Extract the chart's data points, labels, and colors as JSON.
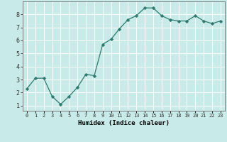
{
  "x": [
    0,
    1,
    2,
    3,
    4,
    5,
    6,
    7,
    8,
    9,
    10,
    11,
    12,
    13,
    14,
    15,
    16,
    17,
    18,
    19,
    20,
    21,
    22,
    23
  ],
  "y": [
    2.3,
    3.1,
    3.1,
    1.7,
    1.1,
    1.7,
    2.4,
    3.4,
    3.3,
    5.7,
    6.1,
    6.9,
    7.6,
    7.9,
    8.5,
    8.5,
    7.9,
    7.6,
    7.5,
    7.5,
    7.9,
    7.5,
    7.3,
    7.5
  ],
  "xlabel": "Humidex (Indice chaleur)",
  "ylim": [
    0.6,
    9.0
  ],
  "xlim": [
    -0.5,
    23.5
  ],
  "line_color": "#2d7a6e",
  "marker": "D",
  "marker_size": 2.2,
  "bg_color": "#c8eae8",
  "grid_color": "#ffffff",
  "yticks": [
    1,
    2,
    3,
    4,
    5,
    6,
    7,
    8
  ],
  "xtick_labels": [
    "0",
    "1",
    "2",
    "3",
    "4",
    "5",
    "6",
    "7",
    "8",
    "9",
    "10",
    "11",
    "12",
    "13",
    "14",
    "15",
    "16",
    "17",
    "18",
    "19",
    "20",
    "21",
    "22",
    "23"
  ],
  "xlabel_fontsize": 6.5,
  "ytick_fontsize": 6.0,
  "xtick_fontsize": 5.0
}
